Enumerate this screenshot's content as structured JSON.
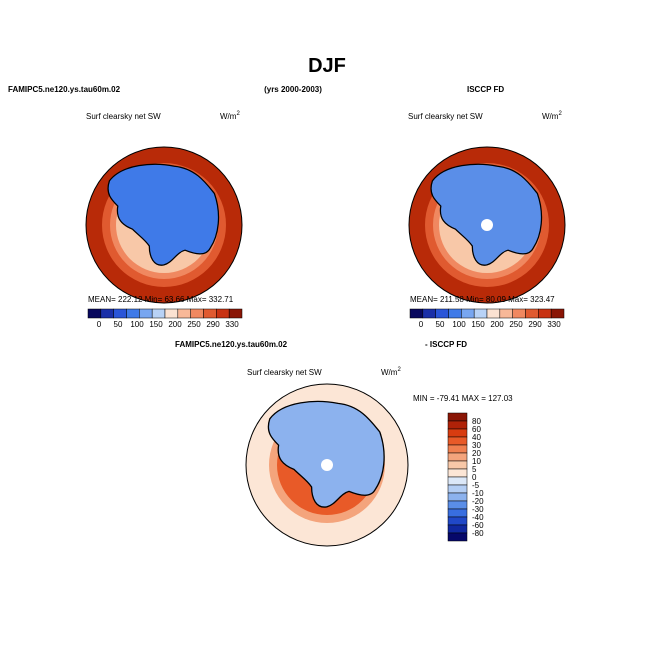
{
  "title": "DJF",
  "header": {
    "left": "FAMIPC5.ne120.ys.tau60m.02",
    "center": "(yrs 2000-2003)",
    "right": "ISCCP FD"
  },
  "panels": [
    {
      "label": "Surf clearsky net SW",
      "units": "W/m",
      "units_sup": "2",
      "stats": "MEAN= 222.12  Min=  63.66  Max= 332.71"
    },
    {
      "label": "Surf clearsky net SW",
      "units": "W/m",
      "units_sup": "2",
      "stats": "MEAN= 211.58  Min=  80.09  Max= 323.47"
    },
    {
      "label": "Surf clearsky net SW",
      "units": "W/m",
      "units_sup": "2",
      "stats": "MIN = -79.41  MAX = 127.03"
    }
  ],
  "diff_header": {
    "left": "FAMIPC5.ne120.ys.tau60m.02",
    "right": "- ISCCP FD"
  },
  "colorbar": {
    "labels": [
      0,
      50,
      100,
      150,
      200,
      250,
      290,
      330
    ],
    "colors": [
      "#08085e",
      "#1a2fa8",
      "#2a55d8",
      "#3f7ae8",
      "#78a6f0",
      "#b8d2f6",
      "#fbe2d2",
      "#f8b898",
      "#f08860",
      "#e05a30",
      "#c83212",
      "#8a1505"
    ]
  },
  "diff_colorbar": {
    "labels": [
      80,
      60,
      40,
      30,
      20,
      10,
      5,
      0,
      -5,
      -10,
      -20,
      -30,
      -40,
      -60,
      -80
    ],
    "colors": [
      "#8a1505",
      "#b02208",
      "#d83c10",
      "#e85a28",
      "#f08050",
      "#f4a47c",
      "#f8c8a8",
      "#fce6d6",
      "#dce8f8",
      "#b4cef4",
      "#8cb2ee",
      "#5a8ee8",
      "#386ee0",
      "#2048c8",
      "#1028a0",
      "#06086a"
    ]
  }
}
